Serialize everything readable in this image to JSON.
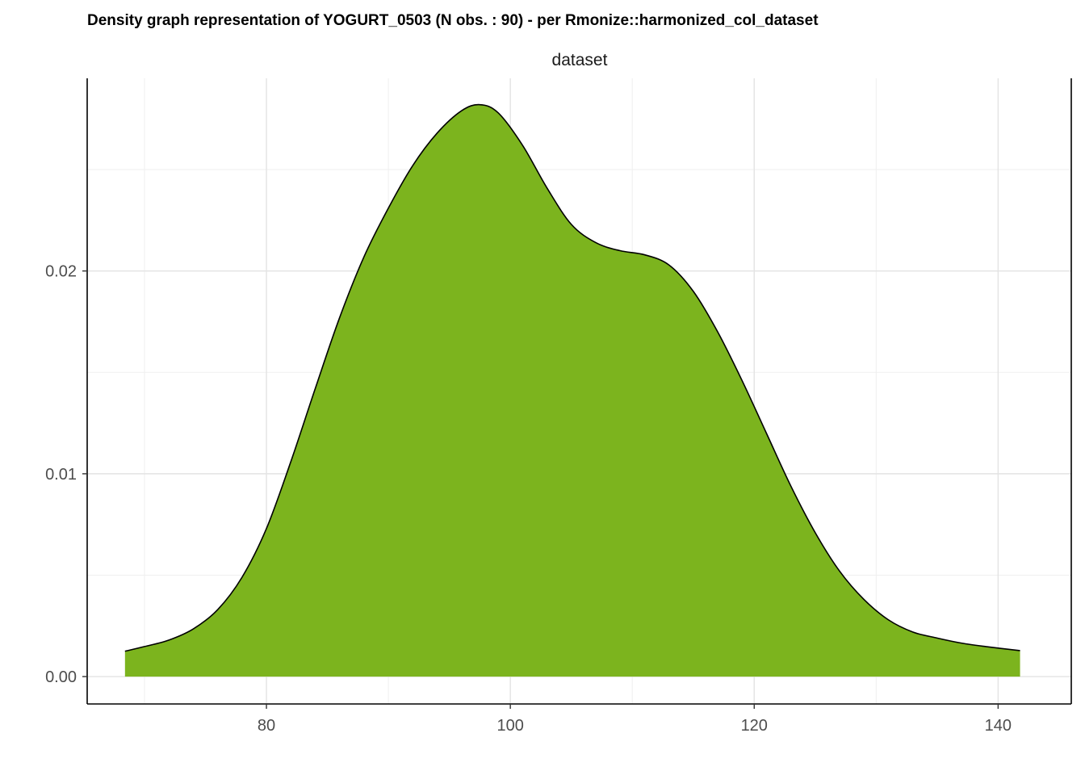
{
  "chart_data": {
    "type": "area",
    "title": "Density graph representation of YOGURT_0503 (N obs. : 90) - per Rmonize::harmonized_col_dataset",
    "facet_label": "dataset",
    "xlabel": "",
    "ylabel": "",
    "xlim": [
      65.3,
      146.0
    ],
    "ylim": [
      -0.00135,
      0.0295
    ],
    "x_ticks": [
      80,
      100,
      120,
      140
    ],
    "x_tick_labels": [
      "80",
      "100",
      "120",
      "140"
    ],
    "x_minor_ticks": [
      70,
      90,
      110,
      130
    ],
    "y_ticks": [
      0.0,
      0.01,
      0.02
    ],
    "y_tick_labels": [
      "0.00",
      "0.01",
      "0.02"
    ],
    "y_minor_ticks": [
      0.005,
      0.015,
      0.025
    ],
    "grid": true,
    "fill_color": "#7cb41e",
    "line_color": "#000000",
    "series": [
      {
        "x": [
          68.4,
          70,
          72,
          74,
          76,
          78,
          80,
          82,
          84,
          86,
          88,
          90,
          92,
          94,
          96,
          97.5,
          99,
          101,
          103,
          105,
          107,
          109,
          111,
          113,
          115,
          117,
          119,
          121,
          123,
          125,
          127,
          129,
          131,
          133,
          135,
          137,
          139,
          141.8
        ],
        "y": [
          0.00125,
          0.00148,
          0.0018,
          0.00235,
          0.0033,
          0.0049,
          0.0073,
          0.0106,
          0.0142,
          0.0177,
          0.0207,
          0.0231,
          0.0252,
          0.0268,
          0.0279,
          0.0282,
          0.0278,
          0.0262,
          0.0241,
          0.0223,
          0.0214,
          0.021,
          0.0208,
          0.0203,
          0.019,
          0.017,
          0.0146,
          0.012,
          0.0094,
          0.0071,
          0.0052,
          0.0038,
          0.0028,
          0.0022,
          0.0019,
          0.00165,
          0.00148,
          0.00128
        ]
      }
    ]
  }
}
